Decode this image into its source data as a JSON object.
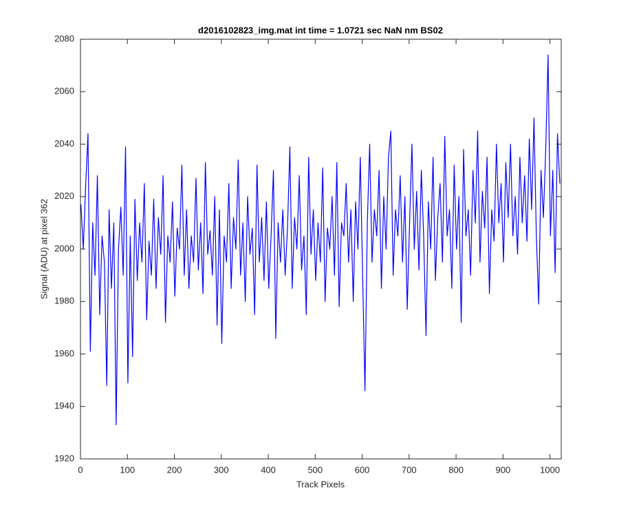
{
  "chart_data": {
    "type": "line",
    "title": "d2016102823_img.mat int time = 1.0721 sec  NaN nm BS02",
    "x_label": "Track Pixels",
    "y_label": "Signal (ADU) at pixel 362",
    "xlim": [
      0,
      1024
    ],
    "ylim": [
      1920,
      2080
    ],
    "xticks": [
      0,
      100,
      200,
      300,
      400,
      500,
      600,
      700,
      800,
      900,
      1000
    ],
    "yticks": [
      1920,
      1940,
      1960,
      1980,
      2000,
      2020,
      2040,
      2060,
      2080
    ],
    "grid": false,
    "series": [
      {
        "color": "#0000ff",
        "x": [
          1,
          6,
          11,
          16,
          21,
          26,
          31,
          36,
          41,
          46,
          51,
          56,
          61,
          66,
          71,
          76,
          81,
          86,
          91,
          96,
          101,
          106,
          111,
          116,
          121,
          126,
          131,
          136,
          141,
          146,
          151,
          156,
          161,
          166,
          171,
          176,
          181,
          186,
          191,
          196,
          201,
          206,
          211,
          216,
          221,
          226,
          231,
          236,
          241,
          246,
          251,
          256,
          261,
          266,
          271,
          276,
          281,
          286,
          291,
          296,
          301,
          306,
          311,
          316,
          321,
          326,
          331,
          336,
          341,
          346,
          351,
          356,
          361,
          366,
          371,
          376,
          381,
          386,
          391,
          396,
          401,
          406,
          411,
          416,
          421,
          426,
          431,
          436,
          441,
          446,
          451,
          456,
          461,
          466,
          471,
          476,
          481,
          486,
          491,
          496,
          501,
          506,
          511,
          516,
          521,
          526,
          531,
          536,
          541,
          546,
          551,
          556,
          561,
          566,
          571,
          576,
          581,
          586,
          591,
          596,
          601,
          606,
          611,
          616,
          621,
          626,
          631,
          636,
          641,
          646,
          651,
          656,
          661,
          666,
          671,
          676,
          681,
          686,
          691,
          696,
          701,
          706,
          711,
          716,
          721,
          726,
          731,
          736,
          741,
          746,
          751,
          756,
          761,
          766,
          771,
          776,
          781,
          786,
          791,
          796,
          801,
          806,
          811,
          816,
          821,
          826,
          831,
          836,
          841,
          846,
          851,
          856,
          861,
          866,
          871,
          876,
          881,
          886,
          891,
          896,
          901,
          906,
          911,
          916,
          921,
          926,
          931,
          936,
          941,
          946,
          951,
          956,
          961,
          966,
          971,
          976,
          981,
          986,
          991,
          996,
          1001,
          1006,
          1011,
          1016,
          1021
        ],
        "values": [
          2017,
          2000,
          2024,
          2044,
          1961,
          2010,
          1990,
          2028,
          1975,
          2005,
          1995,
          1948,
          2015,
          1985,
          2010,
          1933,
          2000,
          2016,
          1990,
          2039,
          1949,
          2005,
          1959,
          2019,
          1988,
          2010,
          1995,
          2025,
          1973,
          2003,
          1990,
          2019,
          1985,
          2012,
          1998,
          2028,
          1972,
          2005,
          1995,
          2018,
          1982,
          2008,
          2000,
          2032,
          1990,
          2015,
          1985,
          2005,
          1995,
          2027,
          1992,
          2010,
          1983,
          2033,
          1998,
          2007,
          1990,
          2020,
          1971,
          2015,
          1964,
          2005,
          1995,
          2025,
          1985,
          2012,
          2000,
          2034,
          1990,
          2010,
          1980,
          2020,
          1998,
          2008,
          1975,
          2032,
          1995,
          2012,
          1988,
          2018,
          1985,
          2005,
          2030,
          1966,
          2010,
          1995,
          2015,
          1990,
          2008,
          2039,
          1985,
          2012,
          2000,
          2028,
          1992,
          2005,
          1975,
          2035,
          1998,
          2015,
          1988,
          2010,
          1995,
          2031,
          1980,
          2008,
          2000,
          2020,
          1990,
          2033,
          1978,
          2010,
          2005,
          2025,
          1995,
          2015,
          1980,
          2018,
          2000,
          2035,
          1990,
          1946,
          2010,
          2040,
          1995,
          2015,
          2005,
          2030,
          1985,
          2020,
          2000,
          2035,
          2045,
          1990,
          2015,
          2005,
          2028,
          1995,
          2020,
          1977,
          2010,
          2040,
          2000,
          2022,
          1992,
          2030,
          2005,
          1967,
          2018,
          2000,
          2035,
          1988,
          2012,
          2025,
          1995,
          2043,
          2005,
          2015,
          1985,
          2032,
          2000,
          2020,
          1972,
          2038,
          2005,
          2015,
          1990,
          2030,
          2010,
          2045,
          1995,
          2022,
          2008,
          2035,
          1983,
          2015,
          2003,
          2040,
          2010,
          2025,
          1995,
          2033,
          2012,
          2040,
          2005,
          2020,
          1998,
          2035,
          2010,
          2028,
          2003,
          2042,
          2015,
          2050,
          2005,
          1979,
          2030,
          2012,
          2038,
          2074,
          2005,
          2030,
          1991,
          2044,
          2025
        ]
      }
    ]
  }
}
